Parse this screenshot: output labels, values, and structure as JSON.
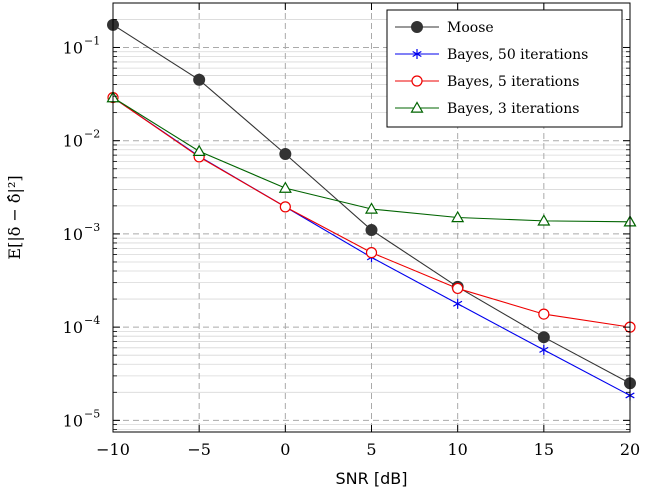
{
  "chart_data": {
    "type": "line",
    "xlabel": "SNR [dB]",
    "ylabel": "E[|δ − δ̂|²]",
    "yscale": "log",
    "xlim": [
      -10,
      20
    ],
    "ylim": [
      7.5e-06,
      0.3
    ],
    "grid": true,
    "legend_position": "top-right",
    "x": [
      -10,
      -5,
      0,
      5,
      10,
      15,
      20
    ],
    "xticks": [
      "−10",
      "−5",
      "0",
      "5",
      "10",
      "15",
      "20"
    ],
    "yticks": [
      {
        "value": 0.1,
        "base": "10",
        "exp": "−1"
      },
      {
        "value": 0.01,
        "base": "10",
        "exp": "−2"
      },
      {
        "value": 0.001,
        "base": "10",
        "exp": "−3"
      },
      {
        "value": 0.0001,
        "base": "10",
        "exp": "−4"
      },
      {
        "value": 1e-05,
        "base": "10",
        "exp": "−5"
      }
    ],
    "series": [
      {
        "name": "Moose",
        "color": "#333333",
        "marker": "filled-circle",
        "values": [
          0.175,
          0.045,
          0.0072,
          0.0011,
          0.00027,
          7.8e-05,
          2.5e-05
        ]
      },
      {
        "name": "Bayes, 50 iterations",
        "color": "#0000ee",
        "marker": "asterisk",
        "values": [
          0.029,
          0.0068,
          0.00195,
          0.00056,
          0.000178,
          5.7e-05,
          1.85e-05
        ]
      },
      {
        "name": "Bayes, 5 iterations",
        "color": "#ee0000",
        "marker": "open-circle",
        "values": [
          0.029,
          0.0067,
          0.00195,
          0.00063,
          0.00026,
          0.000138,
          0.0001
        ]
      },
      {
        "name": "Bayes, 3 iterations",
        "color": "#006400",
        "marker": "triangle",
        "values": [
          0.029,
          0.0077,
          0.0031,
          0.00185,
          0.0015,
          0.00138,
          0.00135
        ]
      }
    ]
  }
}
